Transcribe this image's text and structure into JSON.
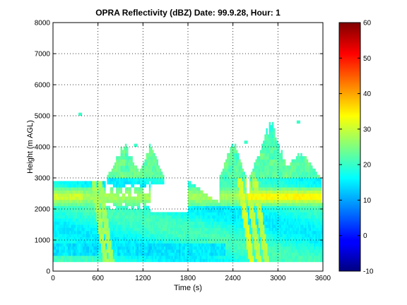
{
  "chart_data": {
    "type": "heatmap",
    "title": "OPRA Reflectivity (dBZ)  Date: 99.9.28, Hour: 1",
    "xlabel": "Time (s)",
    "ylabel": "Height (m AGL)",
    "xlim": [
      0,
      3600
    ],
    "ylim": [
      0,
      8000
    ],
    "xticks": [
      0,
      600,
      1200,
      1800,
      2400,
      3000,
      3600
    ],
    "yticks": [
      0,
      1000,
      2000,
      3000,
      4000,
      5000,
      6000,
      7000,
      8000
    ],
    "grid": true,
    "colormap": "jet",
    "colorbar": {
      "range": [
        -10,
        60
      ],
      "ticks": [
        -10,
        0,
        10,
        20,
        30,
        40,
        50,
        60
      ]
    },
    "data_summary": {
      "time_range_s": [
        0,
        3600
      ],
      "lowest_gate_m": 300,
      "main_layer_top_m": 3000,
      "bright_band_m": [
        2100,
        2700
      ],
      "bright_band_max_dbz": 36,
      "echo_tops": [
        {
          "time_s": [
            800,
            1100
          ],
          "top_m": 4300
        },
        {
          "time_s": [
            1200,
            1400
          ],
          "top_m": 4200
        },
        {
          "time_s": [
            2300,
            2500
          ],
          "top_m": 4400
        },
        {
          "time_s": [
            2700,
            3100
          ],
          "top_m": 5000
        },
        {
          "time_s": [
            3100,
            3500
          ],
          "top_m": 4000
        }
      ],
      "clear_gap": {
        "time_s": [
          1300,
          1800
        ],
        "height_m": [
          1900,
          2800
        ]
      }
    }
  }
}
